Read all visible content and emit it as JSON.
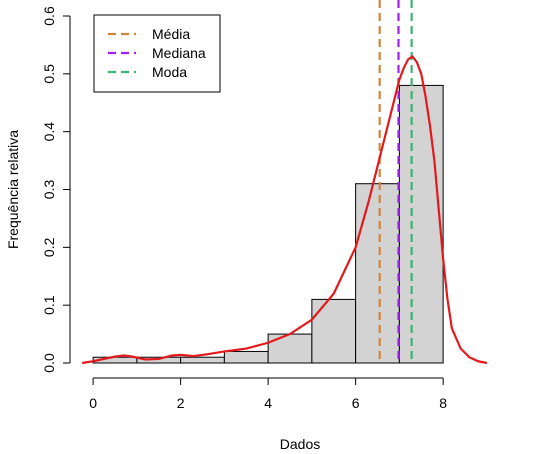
{
  "chart_data": {
    "type": "histogram",
    "title": "",
    "xlabel": "Dados",
    "ylabel": "Frequência relativa",
    "xlim": [
      -0.3,
      9.3
    ],
    "ylim": [
      0,
      0.6
    ],
    "x_ticks": [
      "0",
      "2",
      "4",
      "6",
      "8"
    ],
    "y_ticks": [
      "0.0",
      "0.1",
      "0.2",
      "0.3",
      "0.4",
      "0.5",
      "0.6"
    ],
    "bins": [
      {
        "start": 0,
        "end": 1,
        "value": 0.01
      },
      {
        "start": 1,
        "end": 2,
        "value": 0.01
      },
      {
        "start": 2,
        "end": 3,
        "value": 0.01
      },
      {
        "start": 3,
        "end": 4,
        "value": 0.02
      },
      {
        "start": 4,
        "end": 5,
        "value": 0.05
      },
      {
        "start": 5,
        "end": 6,
        "value": 0.11
      },
      {
        "start": 6,
        "end": 7,
        "value": 0.31
      },
      {
        "start": 7,
        "end": 8,
        "value": 0.48
      }
    ],
    "density_curve": {
      "color": "#e31a1c",
      "x": [
        -0.25,
        0,
        0.3,
        0.5,
        0.7,
        0.9,
        1.2,
        1.5,
        1.8,
        2.0,
        2.3,
        2.6,
        3.0,
        3.5,
        4.0,
        4.5,
        5.0,
        5.5,
        6.0,
        6.3,
        6.6,
        6.9,
        7.0,
        7.1,
        7.2,
        7.3,
        7.4,
        7.5,
        7.6,
        7.7,
        7.8,
        8.0,
        8.1,
        8.2,
        8.4,
        8.6,
        8.8,
        9.0
      ],
      "y": [
        0.0,
        0.003,
        0.008,
        0.011,
        0.013,
        0.011,
        0.006,
        0.007,
        0.013,
        0.014,
        0.012,
        0.015,
        0.02,
        0.025,
        0.035,
        0.05,
        0.075,
        0.12,
        0.2,
        0.28,
        0.37,
        0.46,
        0.49,
        0.51,
        0.525,
        0.53,
        0.52,
        0.5,
        0.46,
        0.41,
        0.35,
        0.18,
        0.11,
        0.06,
        0.025,
        0.01,
        0.003,
        0.0
      ]
    },
    "reference_lines": [
      {
        "name": "Média",
        "x": 6.55,
        "color": "#cd853f"
      },
      {
        "name": "Mediana",
        "x": 6.98,
        "color": "#a020f0"
      },
      {
        "name": "Moda",
        "x": 7.28,
        "color": "#3cb371"
      }
    ],
    "legend": {
      "position": "top-left",
      "entries": [
        "Média",
        "Mediana",
        "Moda"
      ]
    },
    "bar_fill": "#d3d3d3",
    "bar_stroke": "#000000"
  }
}
